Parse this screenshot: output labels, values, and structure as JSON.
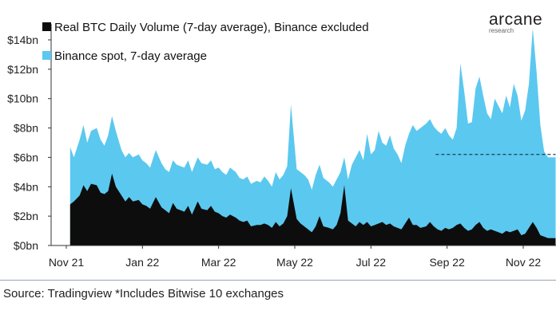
{
  "brand": {
    "name": "arcane",
    "sub": "research"
  },
  "footer": {
    "source": "Source: Tradingview *Includes Bitwise 10 exchanges"
  },
  "chart_data": {
    "type": "area",
    "title": "",
    "xlabel": "",
    "ylabel": "",
    "ylim": [
      0,
      15
    ],
    "ytick_values": [
      0,
      2,
      4,
      6,
      8,
      10,
      12,
      14
    ],
    "ytick_labels": [
      "$0bn",
      "$2bn",
      "$4bn",
      "$6bn",
      "$8bn",
      "$10bn",
      "$12bn",
      "$14bn"
    ],
    "xtick_labels": [
      "Nov 21",
      "Jan 22",
      "Mar 22",
      "May 22",
      "Jul 22",
      "Sep 22",
      "Nov 22"
    ],
    "xtick_months": [
      0,
      2,
      4,
      6,
      8,
      10,
      12
    ],
    "x_range_months": [
      0.1,
      12.85
    ],
    "x_unit": "months since Nov 1, 2021",
    "legend_position": "top-left",
    "reference_line": {
      "style": "dashed",
      "y": 6.2,
      "x_start": 9.7,
      "x_end": 12.85
    },
    "series": [
      {
        "name": "Binance spot, 7-day average",
        "color": "#5bc8ef",
        "x": [
          0.1,
          0.2,
          0.35,
          0.45,
          0.55,
          0.65,
          0.8,
          0.9,
          1.0,
          1.1,
          1.2,
          1.3,
          1.45,
          1.55,
          1.65,
          1.75,
          1.9,
          2.0,
          2.1,
          2.2,
          2.35,
          2.5,
          2.6,
          2.7,
          2.8,
          2.9,
          3.0,
          3.1,
          3.2,
          3.3,
          3.45,
          3.55,
          3.7,
          3.8,
          3.9,
          4.0,
          4.1,
          4.2,
          4.3,
          4.45,
          4.55,
          4.65,
          4.75,
          4.85,
          5.0,
          5.1,
          5.2,
          5.3,
          5.4,
          5.5,
          5.6,
          5.7,
          5.8,
          5.9,
          6.05,
          6.15,
          6.25,
          6.35,
          6.45,
          6.55,
          6.65,
          6.75,
          6.9,
          7.0,
          7.1,
          7.2,
          7.3,
          7.4,
          7.5,
          7.6,
          7.7,
          7.8,
          7.9,
          8.0,
          8.1,
          8.2,
          8.3,
          8.4,
          8.5,
          8.6,
          8.7,
          8.8,
          8.9,
          9.0,
          9.1,
          9.2,
          9.3,
          9.45,
          9.55,
          9.65,
          9.75,
          9.85,
          9.95,
          10.05,
          10.15,
          10.25,
          10.35,
          10.45,
          10.55,
          10.65,
          10.75,
          10.85,
          10.95,
          11.05,
          11.15,
          11.25,
          11.35,
          11.45,
          11.55,
          11.65,
          11.75,
          11.85,
          11.95,
          12.05,
          12.15,
          12.25,
          12.35,
          12.45,
          12.55,
          12.65,
          12.75,
          12.85
        ],
        "values": [
          6.7,
          6.0,
          7.2,
          8.2,
          7.0,
          7.8,
          8.0,
          7.2,
          6.8,
          7.5,
          8.8,
          7.8,
          6.5,
          6.0,
          6.3,
          6.0,
          6.2,
          5.8,
          5.6,
          5.3,
          6.5,
          5.6,
          5.2,
          5.0,
          5.8,
          5.5,
          5.4,
          5.3,
          5.8,
          5.0,
          6.0,
          5.6,
          5.5,
          5.8,
          5.2,
          5.3,
          5.0,
          4.8,
          5.3,
          5.0,
          4.6,
          4.5,
          4.7,
          4.2,
          4.4,
          4.3,
          4.7,
          4.4,
          4.0,
          5.0,
          4.5,
          4.8,
          5.4,
          9.6,
          5.2,
          5.0,
          4.8,
          4.5,
          3.8,
          4.8,
          5.5,
          4.6,
          4.3,
          4.0,
          4.5,
          5.0,
          6.0,
          4.5,
          5.5,
          6.0,
          6.5,
          5.8,
          7.6,
          6.2,
          6.5,
          7.8,
          7.0,
          6.8,
          7.5,
          6.6,
          6.2,
          5.6,
          6.8,
          7.6,
          8.2,
          7.8,
          8.0,
          8.3,
          8.6,
          8.1,
          7.8,
          7.6,
          8.0,
          7.5,
          7.2,
          8.0,
          12.4,
          10.5,
          8.3,
          8.4,
          10.7,
          11.5,
          10.2,
          9.0,
          8.6,
          10.0,
          9.5,
          9.0,
          10.2,
          9.4,
          11.0,
          10.2,
          8.5,
          9.2,
          11.0,
          14.8,
          11.8,
          8.2,
          6.4,
          6.0,
          6.0,
          6.0
        ]
      },
      {
        "name": "Real BTC Daily Volume (7-day average), Binance excluded",
        "color": "#0d0d0d",
        "x": [
          0.1,
          0.2,
          0.35,
          0.45,
          0.55,
          0.65,
          0.8,
          0.9,
          1.0,
          1.1,
          1.2,
          1.3,
          1.45,
          1.55,
          1.65,
          1.75,
          1.9,
          2.0,
          2.1,
          2.2,
          2.35,
          2.5,
          2.6,
          2.7,
          2.8,
          2.9,
          3.0,
          3.1,
          3.2,
          3.3,
          3.45,
          3.55,
          3.7,
          3.8,
          3.9,
          4.0,
          4.1,
          4.2,
          4.3,
          4.45,
          4.55,
          4.65,
          4.75,
          4.85,
          5.0,
          5.1,
          5.2,
          5.3,
          5.4,
          5.5,
          5.6,
          5.7,
          5.8,
          5.9,
          6.05,
          6.15,
          6.25,
          6.35,
          6.45,
          6.55,
          6.65,
          6.75,
          6.9,
          7.0,
          7.1,
          7.2,
          7.3,
          7.4,
          7.5,
          7.6,
          7.7,
          7.8,
          7.9,
          8.0,
          8.1,
          8.2,
          8.3,
          8.4,
          8.5,
          8.6,
          8.7,
          8.8,
          8.9,
          9.0,
          9.1,
          9.2,
          9.3,
          9.45,
          9.55,
          9.65,
          9.75,
          9.85,
          9.95,
          10.05,
          10.15,
          10.25,
          10.35,
          10.45,
          10.55,
          10.65,
          10.75,
          10.85,
          10.95,
          11.05,
          11.15,
          11.25,
          11.35,
          11.45,
          11.55,
          11.65,
          11.75,
          11.85,
          11.95,
          12.05,
          12.15,
          12.25,
          12.35,
          12.45,
          12.55,
          12.65,
          12.75,
          12.85
        ],
        "values": [
          2.8,
          3.0,
          3.4,
          4.1,
          3.7,
          4.2,
          4.1,
          3.6,
          3.5,
          3.7,
          4.9,
          4.0,
          3.4,
          3.0,
          3.3,
          3.0,
          3.1,
          2.8,
          2.7,
          2.5,
          3.3,
          2.6,
          2.4,
          2.2,
          2.9,
          2.5,
          2.4,
          2.3,
          2.7,
          2.1,
          3.0,
          2.5,
          2.4,
          2.7,
          2.3,
          2.2,
          2.0,
          1.9,
          2.1,
          1.9,
          1.7,
          1.6,
          1.7,
          1.3,
          1.4,
          1.4,
          1.5,
          1.4,
          1.2,
          1.6,
          1.3,
          1.5,
          2.0,
          3.9,
          1.8,
          1.5,
          1.3,
          1.1,
          0.9,
          1.3,
          2.0,
          1.3,
          1.2,
          1.1,
          1.4,
          2.2,
          4.1,
          1.7,
          1.5,
          1.3,
          1.6,
          1.4,
          1.6,
          1.3,
          1.4,
          1.5,
          1.6,
          1.4,
          1.5,
          1.3,
          1.2,
          1.1,
          1.5,
          1.9,
          1.4,
          1.4,
          1.2,
          1.3,
          1.6,
          1.3,
          1.1,
          1.0,
          1.2,
          1.1,
          1.2,
          1.4,
          1.5,
          1.2,
          1.0,
          1.1,
          1.4,
          1.6,
          1.2,
          1.0,
          1.1,
          1.0,
          0.9,
          0.8,
          1.0,
          0.9,
          1.0,
          1.1,
          0.7,
          0.8,
          1.2,
          1.6,
          1.2,
          0.7,
          0.6,
          0.5,
          0.5,
          0.5
        ]
      }
    ]
  }
}
